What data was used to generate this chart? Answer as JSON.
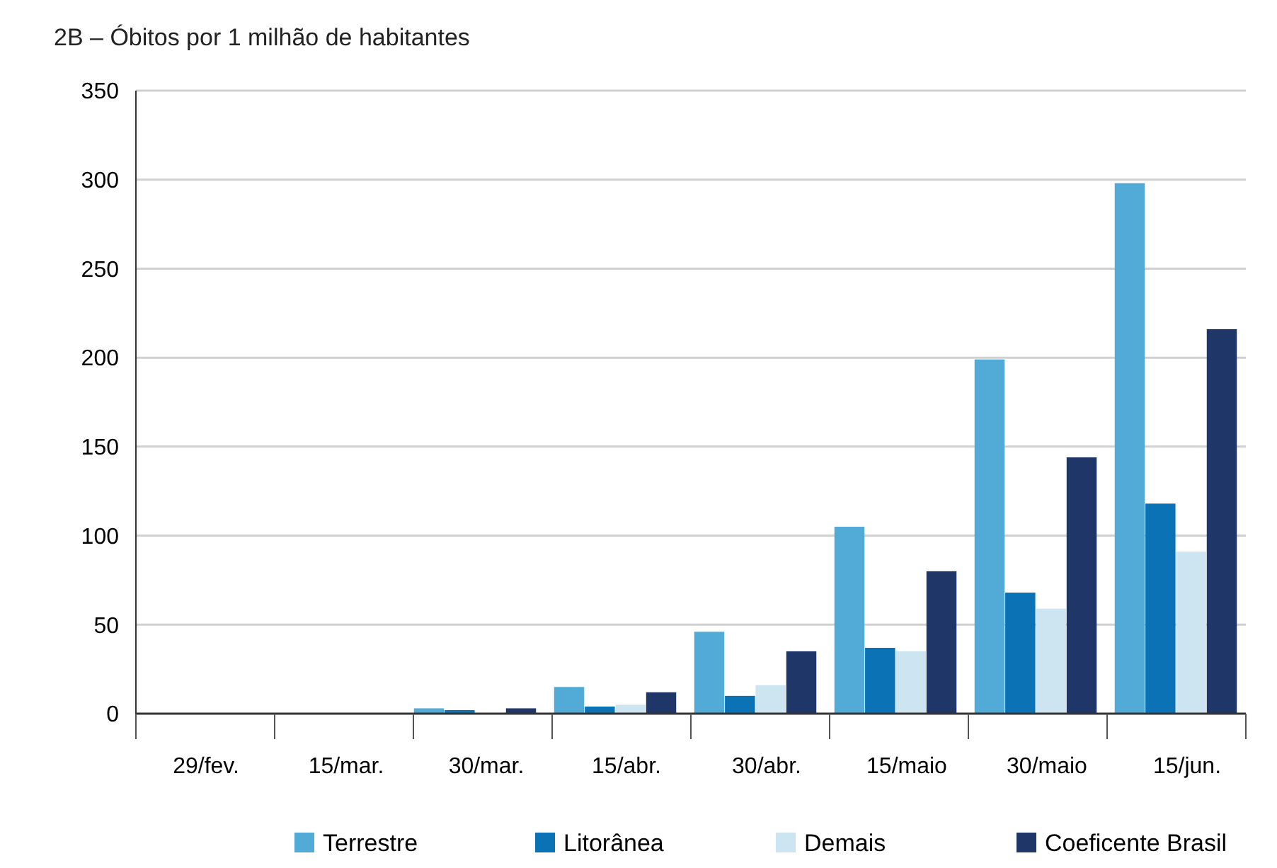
{
  "chart_data": {
    "type": "bar",
    "title": "2B – Óbitos por 1 milhão de habitantes",
    "categories": [
      "29/fev.",
      "15/mar.",
      "30/mar.",
      "15/abr.",
      "30/abr.",
      "15/maio",
      "30/maio",
      "15/jun."
    ],
    "series": [
      {
        "name": "Terrestre",
        "color": "#52aad6",
        "values": [
          0,
          0,
          3,
          15,
          46,
          105,
          199,
          298
        ]
      },
      {
        "name": "Litorânea",
        "color": "#0b72b5",
        "values": [
          0,
          0,
          2,
          4,
          10,
          37,
          68,
          118
        ]
      },
      {
        "name": "Demais",
        "color": "#cde4f1",
        "values": [
          0,
          0,
          null,
          5,
          16,
          35,
          59,
          91
        ]
      },
      {
        "name": "Coeficente Brasil",
        "color": "#1f3768",
        "values": [
          0,
          0,
          3,
          12,
          35,
          80,
          144,
          216
        ]
      }
    ],
    "ylim": [
      0,
      350
    ],
    "yticks": [
      0,
      50,
      100,
      150,
      200,
      250,
      300,
      350
    ],
    "grid": "y",
    "legend": "bottom"
  }
}
